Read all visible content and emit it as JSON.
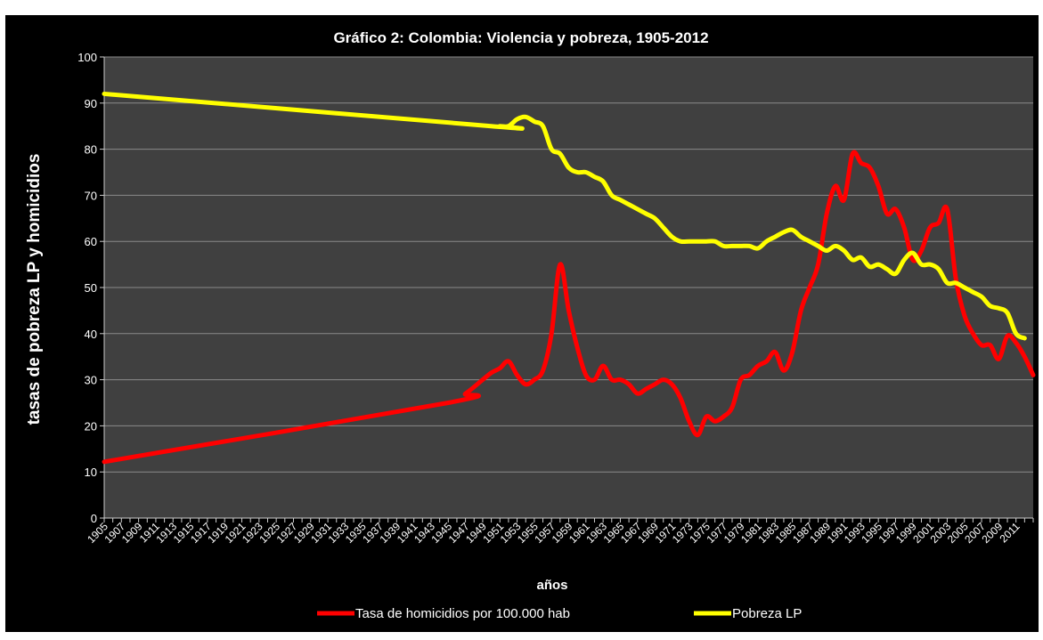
{
  "chart_data": {
    "type": "line",
    "title": "Gráfico 2: Colombia: Violencia y pobreza, 1905-2012",
    "xlabel": "años",
    "ylabel": "tasas de pobreza LP y homicidios",
    "ylim": [
      0,
      100
    ],
    "yticks": [
      0,
      10,
      20,
      30,
      40,
      50,
      60,
      70,
      80,
      90,
      100
    ],
    "xlim": [
      1905,
      2012
    ],
    "xtick_labels": [
      "1905",
      "1907",
      "1909",
      "1911",
      "1913",
      "1915",
      "1917",
      "1919",
      "1921",
      "1923",
      "1925",
      "1927",
      "1929",
      "1931",
      "1933",
      "1935",
      "1937",
      "1939",
      "1941",
      "1943",
      "1945",
      "1947",
      "1949",
      "1951",
      "1953",
      "1955",
      "1957",
      "1959",
      "1961",
      "1963",
      "1965",
      "1967",
      "1969",
      "1971",
      "1973",
      "1975",
      "1977",
      "1979",
      "1981",
      "1983",
      "1985",
      "1987",
      "1989",
      "1991",
      "1993",
      "1995",
      "1997",
      "1999",
      "2001",
      "2003",
      "2005",
      "2007",
      "2009",
      "2011"
    ],
    "grid": true,
    "legend_position": "bottom",
    "background": "#404040",
    "outer_background": "#000000",
    "series": [
      {
        "name": "Tasa de homicidios por 100.000 hab",
        "color": "#ff0000",
        "points": [
          [
            1905,
            12.2
          ],
          [
            1945,
            25
          ],
          [
            1947,
            27
          ],
          [
            1949,
            30
          ],
          [
            1950,
            31.5
          ],
          [
            1951,
            32.5
          ],
          [
            1952,
            34
          ],
          [
            1953,
            31
          ],
          [
            1954,
            29
          ],
          [
            1955,
            30
          ],
          [
            1956,
            32
          ],
          [
            1957,
            40
          ],
          [
            1958,
            55
          ],
          [
            1959,
            45
          ],
          [
            1960,
            37
          ],
          [
            1961,
            31
          ],
          [
            1962,
            30
          ],
          [
            1963,
            33
          ],
          [
            1964,
            30
          ],
          [
            1965,
            30
          ],
          [
            1966,
            29
          ],
          [
            1967,
            27
          ],
          [
            1968,
            28
          ],
          [
            1969,
            29
          ],
          [
            1970,
            30
          ],
          [
            1971,
            29
          ],
          [
            1972,
            26
          ],
          [
            1973,
            21
          ],
          [
            1974,
            18
          ],
          [
            1975,
            22
          ],
          [
            1976,
            21
          ],
          [
            1977,
            22
          ],
          [
            1978,
            24
          ],
          [
            1979,
            30
          ],
          [
            1980,
            31
          ],
          [
            1981,
            33
          ],
          [
            1982,
            34
          ],
          [
            1983,
            36
          ],
          [
            1984,
            32
          ],
          [
            1985,
            36
          ],
          [
            1986,
            45
          ],
          [
            1987,
            50
          ],
          [
            1988,
            55
          ],
          [
            1989,
            66
          ],
          [
            1990,
            72
          ],
          [
            1991,
            69
          ],
          [
            1992,
            79
          ],
          [
            1993,
            77
          ],
          [
            1994,
            76
          ],
          [
            1995,
            72
          ],
          [
            1996,
            66
          ],
          [
            1997,
            67
          ],
          [
            1998,
            63
          ],
          [
            1999,
            56
          ],
          [
            2000,
            58
          ],
          [
            2001,
            63
          ],
          [
            2002,
            64
          ],
          [
            2003,
            67
          ],
          [
            2004,
            52
          ],
          [
            2005,
            44
          ],
          [
            2006,
            40
          ],
          [
            2007,
            37.5
          ],
          [
            2008,
            37.5
          ],
          [
            2009,
            34.5
          ],
          [
            2010,
            39.5
          ],
          [
            2011,
            38
          ],
          [
            2012,
            35
          ],
          [
            2013,
            31
          ]
        ]
      },
      {
        "name": "Pobreza LP",
        "color": "#ffff00",
        "points": [
          [
            1905,
            92
          ],
          [
            1950,
            85
          ],
          [
            1951,
            85
          ],
          [
            1952,
            85
          ],
          [
            1953,
            86.5
          ],
          [
            1954,
            87
          ],
          [
            1955,
            86
          ],
          [
            1956,
            85
          ],
          [
            1957,
            80
          ],
          [
            1958,
            79
          ],
          [
            1959,
            76
          ],
          [
            1960,
            75
          ],
          [
            1961,
            75
          ],
          [
            1962,
            74
          ],
          [
            1963,
            73
          ],
          [
            1964,
            70
          ],
          [
            1965,
            69
          ],
          [
            1966,
            68
          ],
          [
            1967,
            67
          ],
          [
            1968,
            66
          ],
          [
            1969,
            65
          ],
          [
            1970,
            63
          ],
          [
            1971,
            61
          ],
          [
            1972,
            60
          ],
          [
            1973,
            60
          ],
          [
            1974,
            60
          ],
          [
            1975,
            60
          ],
          [
            1976,
            60
          ],
          [
            1977,
            59
          ],
          [
            1978,
            59
          ],
          [
            1979,
            59
          ],
          [
            1980,
            59
          ],
          [
            1981,
            58.5
          ],
          [
            1982,
            60
          ],
          [
            1983,
            61
          ],
          [
            1984,
            62
          ],
          [
            1985,
            62.5
          ],
          [
            1986,
            61
          ],
          [
            1987,
            60
          ],
          [
            1988,
            59
          ],
          [
            1989,
            58
          ],
          [
            1990,
            59
          ],
          [
            1991,
            58
          ],
          [
            1992,
            56
          ],
          [
            1993,
            56.5
          ],
          [
            1994,
            54.5
          ],
          [
            1995,
            55
          ],
          [
            1996,
            54
          ],
          [
            1997,
            53
          ],
          [
            1998,
            56
          ],
          [
            1999,
            57.5
          ],
          [
            2000,
            55
          ],
          [
            2001,
            55
          ],
          [
            2002,
            54
          ],
          [
            2003,
            51
          ],
          [
            2004,
            51
          ],
          [
            2005,
            50
          ],
          [
            2006,
            49
          ],
          [
            2007,
            48
          ],
          [
            2008,
            46
          ],
          [
            2009,
            45.5
          ],
          [
            2010,
            44.5
          ],
          [
            2011,
            40
          ],
          [
            2012,
            39
          ]
        ]
      }
    ]
  }
}
